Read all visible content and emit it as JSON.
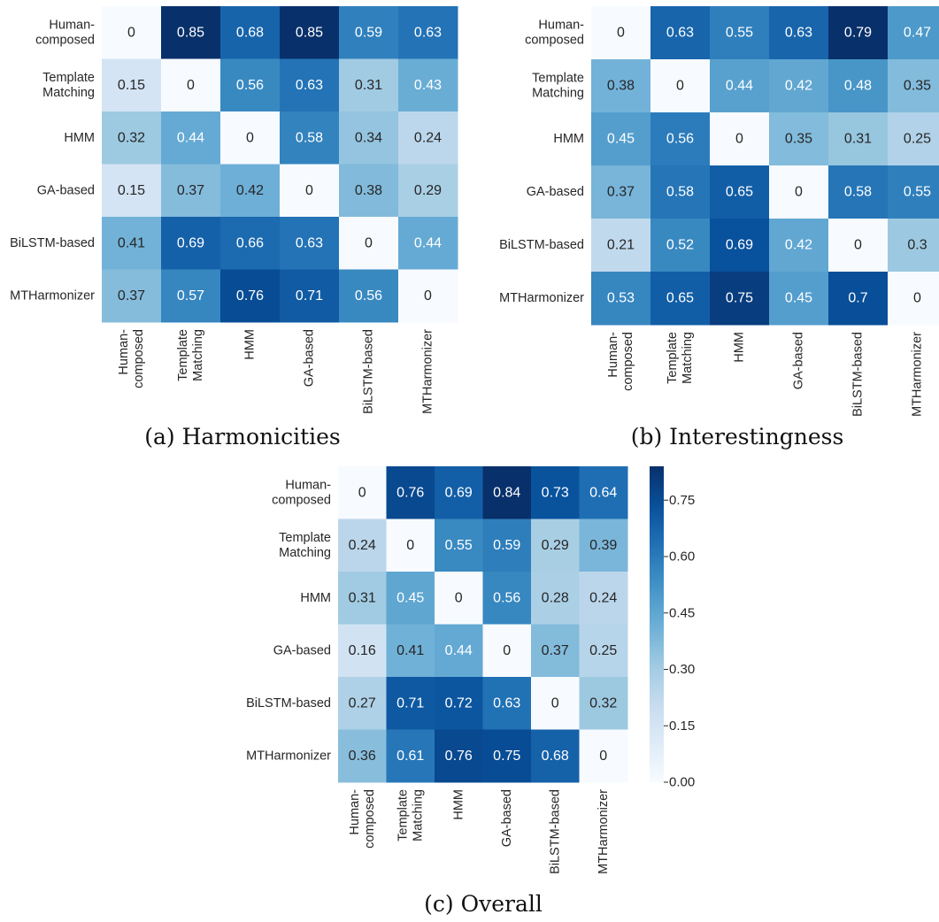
{
  "colors": {
    "scale": [
      "#f7fbff",
      "#deebf7",
      "#c6dbef",
      "#9ecae1",
      "#6baed6",
      "#4292c6",
      "#2171b5",
      "#08519c",
      "#08306b"
    ],
    "text_dark": "#262626",
    "text_light": "#ffffff"
  },
  "chart_data": [
    {
      "type": "heatmap",
      "caption": "(a) Harmonicities",
      "row_labels": [
        [
          "Human-",
          "composed"
        ],
        [
          "Template",
          "Matching"
        ],
        [
          "HMM"
        ],
        [
          "GA-based"
        ],
        [
          "BiLSTM-based"
        ],
        [
          "MTHarmonizer"
        ]
      ],
      "col_labels": [
        [
          "Human-",
          "composed"
        ],
        [
          "Template",
          "Matching"
        ],
        [
          "HMM"
        ],
        [
          "GA-based"
        ],
        [
          "BiLSTM-based"
        ],
        [
          "MTHarmonizer"
        ]
      ],
      "values": [
        [
          0,
          0.85,
          0.68,
          0.85,
          0.59,
          0.63
        ],
        [
          0.15,
          0,
          0.56,
          0.63,
          0.31,
          0.43
        ],
        [
          0.32,
          0.44,
          0,
          0.58,
          0.34,
          0.24
        ],
        [
          0.15,
          0.37,
          0.42,
          0,
          0.38,
          0.29
        ],
        [
          0.41,
          0.69,
          0.66,
          0.63,
          0,
          0.44
        ],
        [
          0.37,
          0.57,
          0.76,
          0.71,
          0.56,
          0
        ]
      ],
      "vmin": 0,
      "vmax": 0.85
    },
    {
      "type": "heatmap",
      "caption": "(b) Interestingness",
      "row_labels": [
        [
          "Human-",
          "composed"
        ],
        [
          "Template",
          "Matching"
        ],
        [
          "HMM"
        ],
        [
          "GA-based"
        ],
        [
          "BiLSTM-based"
        ],
        [
          "MTHarmonizer"
        ]
      ],
      "col_labels": [
        [
          "Human-",
          "composed"
        ],
        [
          "Template",
          "Matching"
        ],
        [
          "HMM"
        ],
        [
          "GA-based"
        ],
        [
          "BiLSTM-based"
        ],
        [
          "MTHarmonizer"
        ]
      ],
      "values": [
        [
          0,
          0.63,
          0.55,
          0.63,
          0.79,
          0.47
        ],
        [
          0.38,
          0,
          0.44,
          0.42,
          0.48,
          0.35
        ],
        [
          0.45,
          0.56,
          0,
          0.35,
          0.31,
          0.25
        ],
        [
          0.37,
          0.58,
          0.65,
          0,
          0.58,
          0.55
        ],
        [
          0.21,
          0.52,
          0.69,
          0.42,
          0,
          0.3
        ],
        [
          0.53,
          0.65,
          0.75,
          0.45,
          0.7,
          0
        ]
      ],
      "vmin": 0,
      "vmax": 0.79
    },
    {
      "type": "heatmap",
      "caption": "(c) Overall",
      "row_labels": [
        [
          "Human-",
          "composed"
        ],
        [
          "Template",
          "Matching"
        ],
        [
          "HMM"
        ],
        [
          "GA-based"
        ],
        [
          "BiLSTM-based"
        ],
        [
          "MTHarmonizer"
        ]
      ],
      "col_labels": [
        [
          "Human-",
          "composed"
        ],
        [
          "Template",
          "Matching"
        ],
        [
          "HMM"
        ],
        [
          "GA-based"
        ],
        [
          "BiLSTM-based"
        ],
        [
          "MTHarmonizer"
        ]
      ],
      "values": [
        [
          0,
          0.76,
          0.69,
          0.84,
          0.73,
          0.64
        ],
        [
          0.24,
          0,
          0.55,
          0.59,
          0.29,
          0.39
        ],
        [
          0.31,
          0.45,
          0,
          0.56,
          0.28,
          0.24
        ],
        [
          0.16,
          0.41,
          0.44,
          0,
          0.37,
          0.25
        ],
        [
          0.27,
          0.71,
          0.72,
          0.63,
          0,
          0.32
        ],
        [
          0.36,
          0.61,
          0.76,
          0.75,
          0.68,
          0
        ]
      ],
      "vmin": 0,
      "vmax": 0.84,
      "colorbar": {
        "ticks": [
          0.0,
          0.15,
          0.3,
          0.45,
          0.6,
          0.75
        ],
        "tick_labels": [
          "0.00",
          "0.15",
          "0.30",
          "0.45",
          "0.60",
          "0.75"
        ]
      }
    }
  ]
}
